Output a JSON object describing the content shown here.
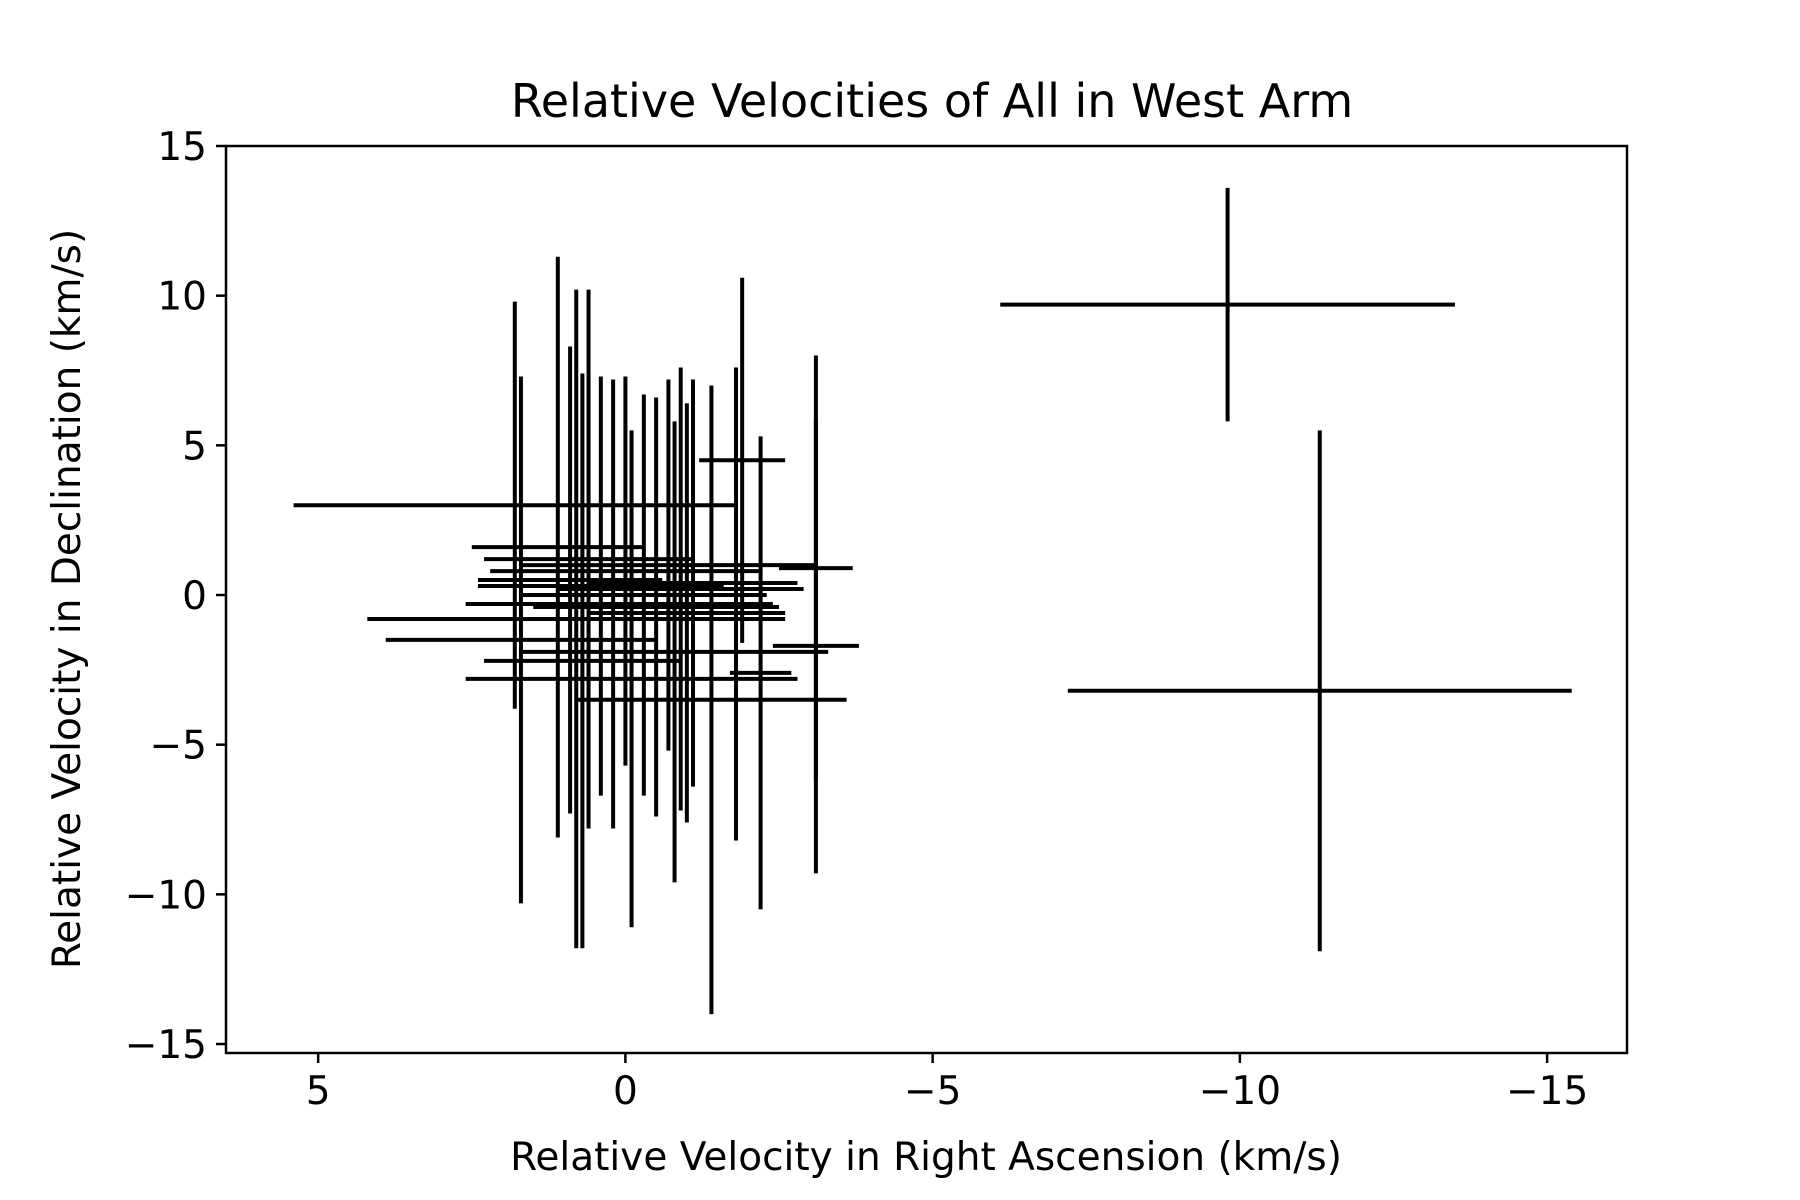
{
  "chart_data": {
    "type": "scatter",
    "title": "Relative Velocities of All in West Arm",
    "xlabel": "Relative Velocity in Right Ascension (km/s)",
    "ylabel": "Relative Velocity in Declination (km/s)",
    "xlim": [
      6.5,
      -16.3
    ],
    "ylim": [
      -15.3,
      15
    ],
    "x_inverted": true,
    "grid": false,
    "legend": "none",
    "color": "#000000",
    "xticks": [
      5,
      0,
      -5,
      -10,
      -15
    ],
    "xtick_labels": [
      "5",
      "0",
      "−5",
      "−10",
      "−15"
    ],
    "yticks": [
      15,
      10,
      5,
      0,
      -5,
      -10,
      -15
    ],
    "ytick_labels": [
      "15",
      "10",
      "5",
      "0",
      "−5",
      "−10",
      "−15"
    ],
    "points": [
      {
        "x": 1.8,
        "y": 3.0,
        "xerr": 3.6,
        "yerr": 6.8
      },
      {
        "x": 1.7,
        "y": -1.5,
        "xerr": 2.2,
        "yerr": 8.8
      },
      {
        "x": 1.1,
        "y": 1.6,
        "xerr": 1.4,
        "yerr": 9.7
      },
      {
        "x": 0.9,
        "y": 0.5,
        "xerr": 1.5,
        "yerr": 7.8
      },
      {
        "x": 0.8,
        "y": -0.8,
        "xerr": 3.4,
        "yerr": 11.0
      },
      {
        "x": 0.7,
        "y": -2.2,
        "xerr": 1.6,
        "yerr": 9.6
      },
      {
        "x": 0.6,
        "y": 1.2,
        "xerr": 1.7,
        "yerr": 9.0
      },
      {
        "x": 0.4,
        "y": 0.3,
        "xerr": 2.0,
        "yerr": 7.0
      },
      {
        "x": 0.2,
        "y": -0.3,
        "xerr": 2.4,
        "yerr": 7.5
      },
      {
        "x": 0.0,
        "y": 0.8,
        "xerr": 2.2,
        "yerr": 6.5
      },
      {
        "x": -0.1,
        "y": -2.8,
        "xerr": 2.7,
        "yerr": 8.3
      },
      {
        "x": -0.3,
        "y": 0.0,
        "xerr": 2.0,
        "yerr": 6.7
      },
      {
        "x": -0.5,
        "y": -0.4,
        "xerr": 2.0,
        "yerr": 7.0
      },
      {
        "x": -0.7,
        "y": 1.0,
        "xerr": 2.4,
        "yerr": 6.2
      },
      {
        "x": -0.8,
        "y": -1.9,
        "xerr": 2.5,
        "yerr": 7.7
      },
      {
        "x": -0.9,
        "y": 0.2,
        "xerr": 2.0,
        "yerr": 7.4
      },
      {
        "x": -1.0,
        "y": -0.6,
        "xerr": 1.6,
        "yerr": 7.0
      },
      {
        "x": -1.1,
        "y": 0.4,
        "xerr": 1.7,
        "yerr": 6.8
      },
      {
        "x": -1.4,
        "y": -3.5,
        "xerr": 2.2,
        "yerr": 10.5
      },
      {
        "x": -1.8,
        "y": -0.3,
        "xerr": 0.6,
        "yerr": 7.9
      },
      {
        "x": -1.9,
        "y": 4.5,
        "xerr": 0.7,
        "yerr": 6.1
      },
      {
        "x": -2.2,
        "y": -2.6,
        "xerr": 0.5,
        "yerr": 7.9
      },
      {
        "x": -3.1,
        "y": 0.9,
        "xerr": 0.6,
        "yerr": 7.1
      },
      {
        "x": -3.1,
        "y": -1.7,
        "xerr": 0.7,
        "yerr": 7.6
      },
      {
        "x": -9.8,
        "y": 9.7,
        "xerr": 3.7,
        "yerr": 3.9
      },
      {
        "x": -11.3,
        "y": -3.2,
        "xerr": 4.1,
        "yerr": 8.7
      }
    ]
  }
}
